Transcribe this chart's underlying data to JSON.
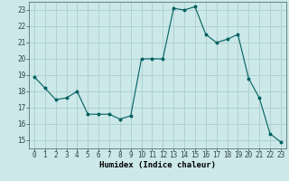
{
  "x": [
    0,
    1,
    2,
    3,
    4,
    5,
    6,
    7,
    8,
    9,
    10,
    11,
    12,
    13,
    14,
    15,
    16,
    17,
    18,
    19,
    20,
    21,
    22,
    23
  ],
  "y": [
    18.9,
    18.2,
    17.5,
    17.6,
    18.0,
    16.6,
    16.6,
    16.6,
    16.3,
    16.5,
    20.0,
    20.0,
    20.0,
    23.1,
    23.0,
    23.2,
    21.5,
    21.0,
    21.2,
    21.5,
    18.8,
    17.6,
    15.4,
    14.9
  ],
  "line_color": "#006060",
  "marker_color": "#006060",
  "bg_color": "#cce8e8",
  "grid_color": "#aacece",
  "xlabel": "Humidex (Indice chaleur)",
  "xlim": [
    -0.5,
    23.5
  ],
  "ylim": [
    14.5,
    23.5
  ],
  "yticks": [
    15,
    16,
    17,
    18,
    19,
    20,
    21,
    22,
    23
  ],
  "xticks": [
    0,
    1,
    2,
    3,
    4,
    5,
    6,
    7,
    8,
    9,
    10,
    11,
    12,
    13,
    14,
    15,
    16,
    17,
    18,
    19,
    20,
    21,
    22,
    23
  ],
  "xlabel_fontsize": 6.5,
  "tick_fontsize": 5.5
}
